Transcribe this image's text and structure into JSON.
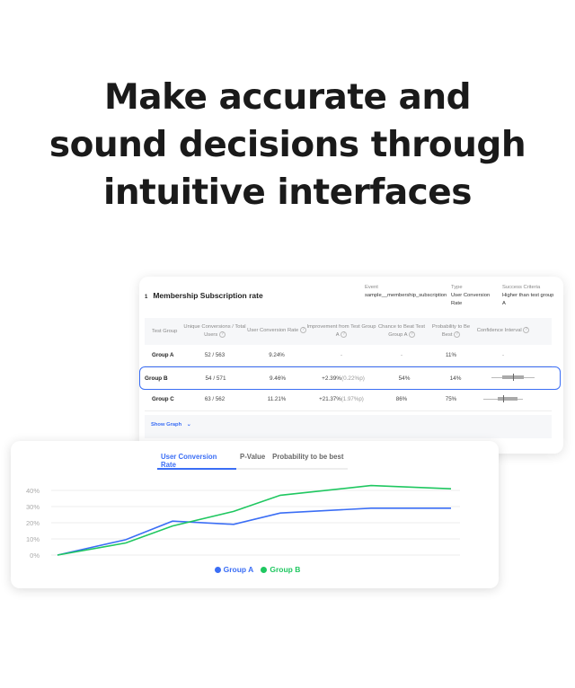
{
  "headline": {
    "line1": "Make accurate and",
    "line2": "sound decisions through",
    "line3": "intuitive interfaces"
  },
  "experiment": {
    "index": "1",
    "title": "Membership Subscription rate",
    "event_label": "Event",
    "event_value": "sample__membership_subscription",
    "type_label": "Type",
    "type_value": "User Conversion Rate",
    "criteria_label": "Success Criteria",
    "criteria_value": "Higher than test group A"
  },
  "table": {
    "columns": [
      "Test Group",
      "Unique Conversions / Total Users",
      "User Conversion Rate",
      "Improvement from Test Group A",
      "Chance to Beat Test Group A",
      "Probability to Be Best",
      "Confidence Interval"
    ],
    "rows": [
      {
        "group": "Group A",
        "conversions": "52 / 563",
        "rate": "9.24%",
        "improvement": "-",
        "improvement_p": "",
        "chance": "-",
        "probability": "11%",
        "ci": "-"
      },
      {
        "group": "Group B",
        "conversions": "54 / 571",
        "rate": "9.46%",
        "improvement": "+2.39%",
        "improvement_p": "(0.22%p)",
        "chance": "54%",
        "probability": "14%",
        "ci": ""
      },
      {
        "group": "Group C",
        "conversions": "63 / 562",
        "rate": "11.21%",
        "improvement": "+21.37%",
        "improvement_p": "(1.97%p)",
        "chance": "86%",
        "probability": "75%",
        "ci": ""
      }
    ],
    "selected_row": "Group B",
    "show_graph": "Show Graph"
  },
  "graph": {
    "tabs": [
      "User Conversion Rate",
      "P-Value",
      "Probability to be best"
    ],
    "active_tab": "User Conversion Rate"
  },
  "chart_data": {
    "type": "line",
    "ylim": [
      0,
      40
    ],
    "yticks": [
      "0%",
      "10%",
      "20%",
      "30%",
      "40%"
    ],
    "grid": true,
    "legend": "bottom",
    "series": [
      {
        "name": "Group A",
        "color": "#3b6ef5",
        "values": [
          0,
          9.5,
          21,
          19,
          26,
          29,
          29
        ]
      },
      {
        "name": "Group B",
        "color": "#1fc760",
        "values": [
          0,
          7.5,
          18,
          27,
          37,
          43,
          41
        ]
      }
    ]
  },
  "colors": {
    "accent": "#3b6ef5",
    "groupA": "#3b6ef5",
    "groupB": "#1fc760"
  }
}
